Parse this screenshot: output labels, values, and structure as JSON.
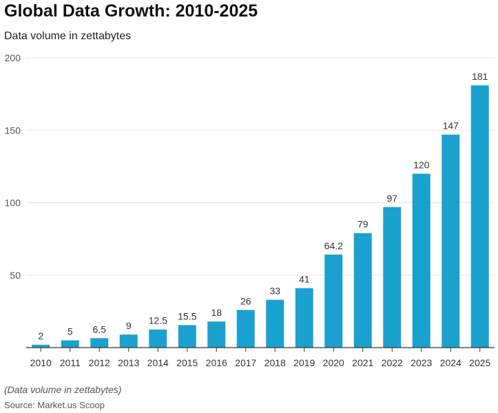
{
  "chart_data": {
    "type": "bar",
    "title": "Global Data Growth: 2010-2025",
    "subtitle": "Data volume in zettabytes",
    "xlabel": "",
    "ylabel": "",
    "categories": [
      "2010",
      "2011",
      "2012",
      "2013",
      "2014",
      "2015",
      "2016",
      "2017",
      "2018",
      "2019",
      "2020",
      "2021",
      "2022",
      "2023",
      "2024",
      "2025"
    ],
    "values": [
      2,
      5,
      6.5,
      9,
      12.5,
      15.5,
      18,
      26,
      33,
      41,
      64.2,
      79,
      97,
      120,
      147,
      181
    ],
    "ylim": [
      0,
      200
    ],
    "yticks": [
      50,
      100,
      150,
      200
    ],
    "grid": true,
    "bar_color": "#1ba1cf"
  },
  "footer": {
    "note": "(Data volume in zettabytes)",
    "source": "Source: Market.us Scoop"
  }
}
